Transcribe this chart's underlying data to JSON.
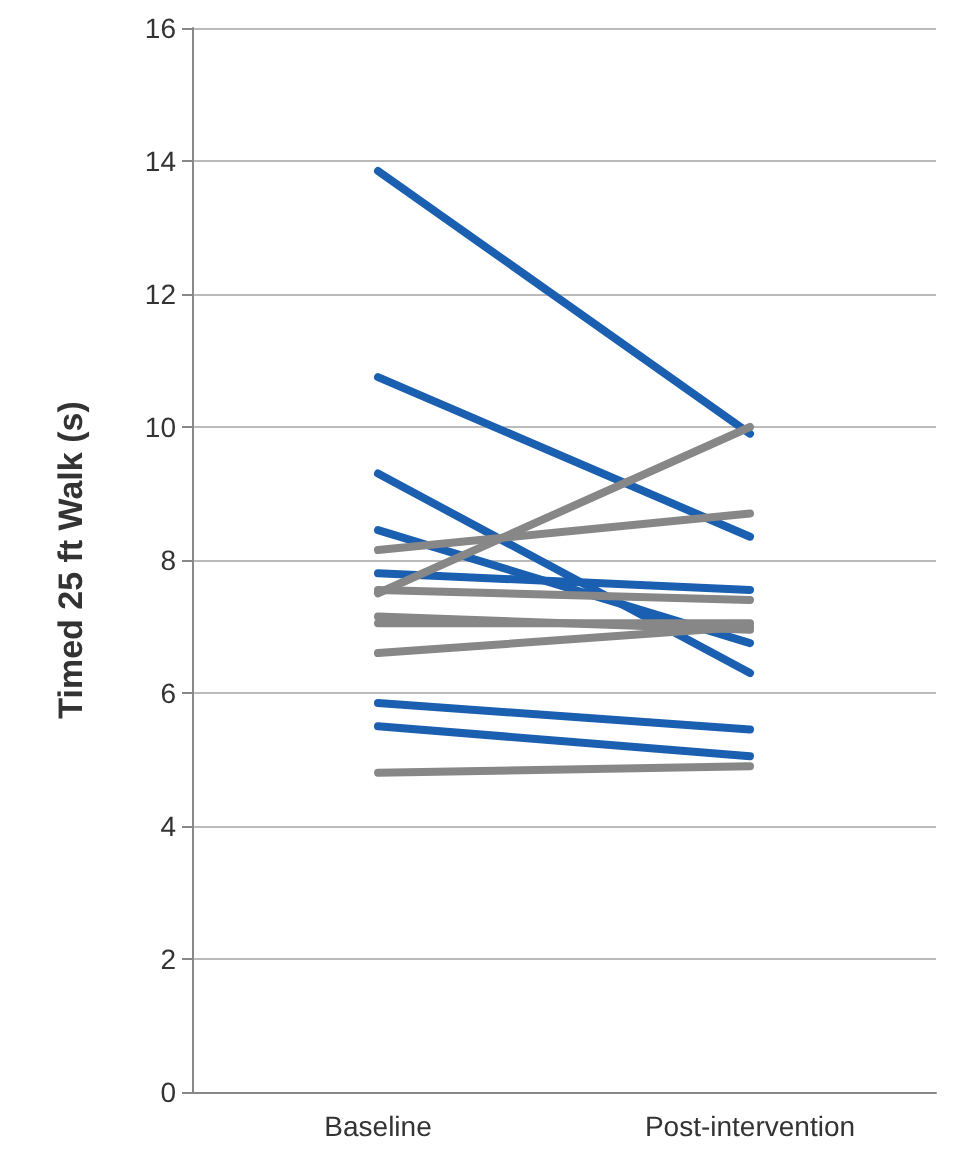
{
  "chart_data": {
    "type": "line",
    "ylabel": "Timed 25 ft Walk (s)",
    "categories": [
      "Baseline",
      "Post-intervention"
    ],
    "series": [
      {
        "color": "#1a5fb0",
        "values": [
          13.85,
          9.9
        ]
      },
      {
        "color": "#1a5fb0",
        "values": [
          10.75,
          8.35
        ]
      },
      {
        "color": "#1a5fb0",
        "values": [
          9.3,
          6.3
        ]
      },
      {
        "color": "#1a5fb0",
        "values": [
          8.45,
          6.75
        ]
      },
      {
        "color": "#1a5fb0",
        "values": [
          7.8,
          7.55
        ]
      },
      {
        "color": "#1a5fb0",
        "values": [
          5.85,
          5.45
        ]
      },
      {
        "color": "#1a5fb0",
        "values": [
          5.5,
          5.05
        ]
      },
      {
        "color": "#878787",
        "values": [
          7.5,
          10.0
        ]
      },
      {
        "color": "#878787",
        "values": [
          8.15,
          8.7
        ]
      },
      {
        "color": "#878787",
        "values": [
          7.55,
          7.4
        ]
      },
      {
        "color": "#878787",
        "values": [
          7.15,
          6.95
        ]
      },
      {
        "color": "#878787",
        "values": [
          7.05,
          7.05
        ]
      },
      {
        "color": "#878787",
        "values": [
          6.6,
          7.0
        ]
      },
      {
        "color": "#878787",
        "values": [
          4.8,
          4.9
        ]
      }
    ],
    "ylim": [
      0,
      16
    ],
    "yticks": [
      0,
      2,
      4,
      6,
      8,
      10,
      12,
      14,
      16
    ],
    "grid": "y",
    "marker": "none",
    "line_style": "solid"
  }
}
